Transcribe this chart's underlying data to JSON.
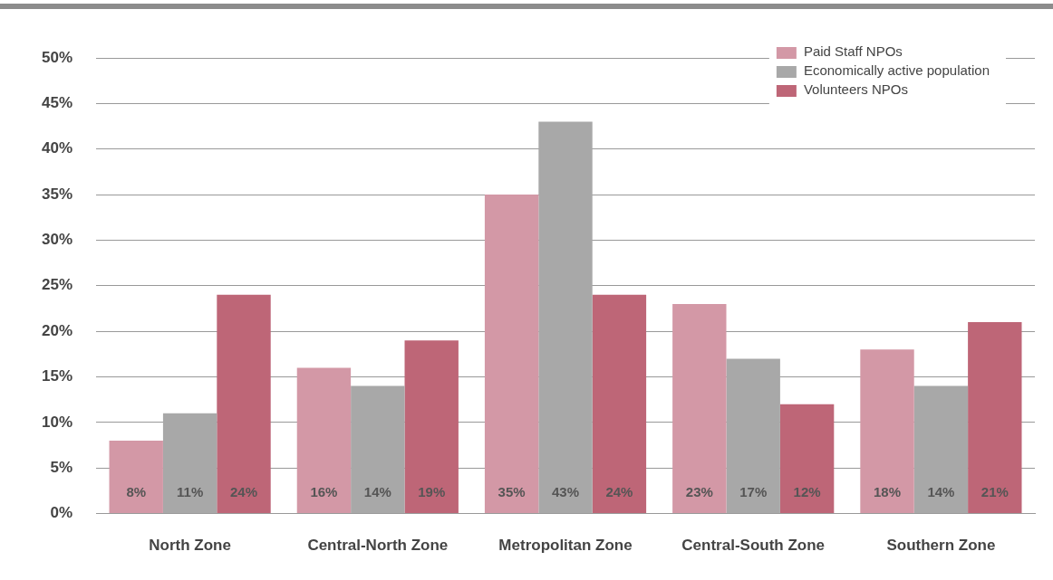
{
  "chart_data": {
    "type": "bar",
    "categories": [
      "North Zone",
      "Central-North Zone",
      "Metropolitan Zone",
      "Central-South Zone",
      "Southern Zone"
    ],
    "series": [
      {
        "name": "Paid Staff NPOs",
        "color": "#d398a6",
        "values": [
          8,
          16,
          35,
          23,
          18
        ],
        "value_labels": [
          "8%",
          "16%",
          "35%",
          "23%",
          "18%"
        ]
      },
      {
        "name": "Economically active population",
        "color": "#a8a8a8",
        "values": [
          11,
          14,
          43,
          17,
          14
        ],
        "value_labels": [
          "11%",
          "14%",
          "43%",
          "17%",
          "14%"
        ]
      },
      {
        "name": "Volunteers NPOs",
        "color": "#be6677",
        "values": [
          24,
          19,
          24,
          12,
          21
        ],
        "value_labels": [
          "24%",
          "19%",
          "24%",
          "12%",
          "21%"
        ]
      }
    ],
    "ylim": [
      0,
      50
    ],
    "yticks": [
      {
        "value": 0,
        "label": "0%"
      },
      {
        "value": 5,
        "label": "5%"
      },
      {
        "value": 10,
        "label": "10%"
      },
      {
        "value": 15,
        "label": "15%"
      },
      {
        "value": 20,
        "label": "20%"
      },
      {
        "value": 25,
        "label": "25%"
      },
      {
        "value": 30,
        "label": "30%"
      },
      {
        "value": 35,
        "label": "35%"
      },
      {
        "value": 40,
        "label": "40%"
      },
      {
        "value": 45,
        "label": "45%"
      },
      {
        "value": 50,
        "label": "50%"
      }
    ],
    "grid": "y",
    "legend": "top right"
  }
}
